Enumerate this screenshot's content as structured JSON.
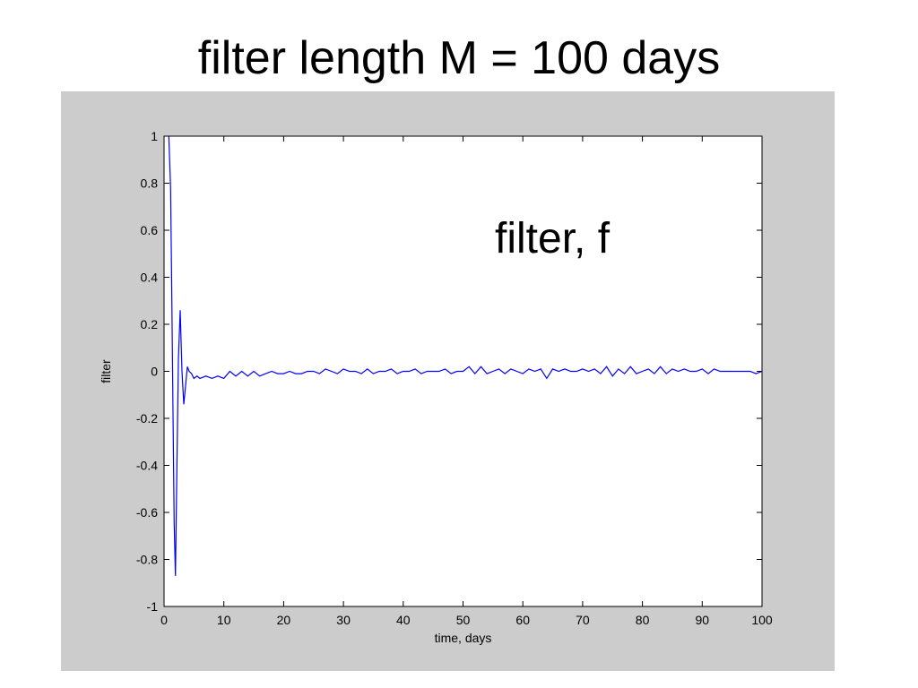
{
  "title": "filter length M = 100 days",
  "colors": {
    "panel": "#cccccc",
    "plot_bg": "#ffffff",
    "series": "#0000ff"
  },
  "chart_data": {
    "type": "line",
    "xlabel": "time, days",
    "ylabel": "filter",
    "xlim": [
      0,
      100
    ],
    "ylim": [
      -1,
      1
    ],
    "xticks": [
      0,
      10,
      20,
      30,
      40,
      50,
      60,
      70,
      80,
      90,
      100
    ],
    "yticks": [
      -1,
      -0.8,
      -0.6,
      -0.4,
      -0.2,
      0,
      0.2,
      0.4,
      0.6,
      0.8,
      1
    ],
    "grid": false,
    "annotations": [
      {
        "text": "filter, f"
      }
    ],
    "series": [
      {
        "color": "#0000ff",
        "x": [
          0.8,
          1.1,
          1.3,
          1.5,
          1.7,
          1.9,
          2.1,
          2.4,
          2.7,
          3.0,
          3.3,
          3.6,
          3.9,
          4.2,
          4.6,
          5.0,
          5.5,
          6,
          7,
          8,
          9,
          10,
          11,
          12,
          13,
          14,
          15,
          16,
          17,
          18,
          19,
          20,
          21,
          22,
          23,
          24,
          25,
          26,
          27,
          28,
          29,
          30,
          31,
          32,
          33,
          34,
          35,
          36,
          37,
          38,
          39,
          40,
          41,
          42,
          43,
          44,
          45,
          46,
          47,
          48,
          49,
          50,
          51,
          52,
          53,
          54,
          55,
          56,
          57,
          58,
          59,
          60,
          61,
          62,
          63,
          64,
          65,
          66,
          67,
          68,
          69,
          70,
          71,
          72,
          73,
          74,
          75,
          76,
          77,
          78,
          79,
          80,
          81,
          82,
          83,
          84,
          85,
          86,
          87,
          88,
          89,
          90,
          91,
          92,
          93,
          94,
          95,
          96,
          97,
          98,
          99,
          100
        ],
        "y": [
          1.0,
          0.78,
          0.3,
          -0.18,
          -0.65,
          -0.87,
          -0.5,
          0.05,
          0.26,
          0.0,
          -0.14,
          -0.06,
          0.02,
          0.0,
          -0.01,
          -0.03,
          -0.02,
          -0.03,
          -0.02,
          -0.03,
          -0.02,
          -0.03,
          0.0,
          -0.02,
          0.0,
          -0.02,
          0.0,
          -0.02,
          -0.01,
          0.0,
          -0.01,
          -0.01,
          0.0,
          -0.01,
          -0.01,
          0.0,
          0.0,
          -0.01,
          0.01,
          0.0,
          -0.01,
          0.01,
          0.0,
          0.0,
          -0.01,
          0.01,
          -0.01,
          0.0,
          0.0,
          0.01,
          -0.01,
          0.0,
          0.0,
          0.01,
          -0.01,
          0.0,
          0.0,
          0.0,
          0.01,
          -0.01,
          0.0,
          0.0,
          0.02,
          -0.01,
          0.02,
          -0.01,
          0.0,
          0.01,
          -0.01,
          0.01,
          0.0,
          -0.01,
          0.01,
          0.0,
          0.01,
          -0.03,
          0.01,
          0.0,
          0.01,
          0.0,
          0.0,
          0.01,
          0.0,
          0.01,
          -0.01,
          0.02,
          -0.02,
          0.01,
          -0.01,
          0.02,
          -0.01,
          0.0,
          0.01,
          -0.01,
          0.02,
          -0.01,
          0.01,
          0.0,
          0.01,
          0.0,
          0.0,
          0.01,
          -0.01,
          0.01,
          0.0,
          0.0,
          0.0,
          0.0,
          0.0,
          0.0,
          -0.01,
          0.0
        ]
      }
    ]
  }
}
